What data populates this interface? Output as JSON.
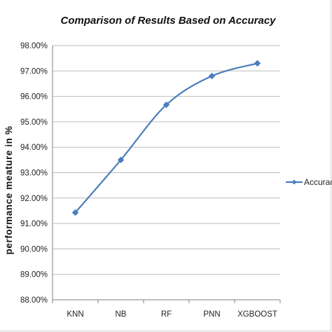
{
  "chart_data": {
    "type": "line",
    "title": "Comparison of Results Based on Accuracy",
    "xlabel": "",
    "ylabel": "performance meature in %",
    "categories": [
      "KNN",
      "NB",
      "RF",
      "PNN",
      "XGBOOST"
    ],
    "series": [
      {
        "name": "Accuracy",
        "values": [
          91.43,
          93.5,
          95.67,
          96.8,
          97.3
        ],
        "color": "#4a7ebb",
        "marker": "diamond"
      }
    ],
    "ylim": [
      88.0,
      98.0
    ],
    "yticks": [
      88.0,
      89.0,
      90.0,
      91.0,
      92.0,
      93.0,
      94.0,
      95.0,
      96.0,
      97.0,
      98.0
    ],
    "ytick_labels": [
      "88.00%",
      "89.00%",
      "90.00%",
      "91.00%",
      "92.00%",
      "93.00%",
      "94.00%",
      "95.00%",
      "96.00%",
      "97.00%",
      "98.00%"
    ],
    "grid": true,
    "legend_position": "right",
    "legend_label": "Accuracy"
  }
}
